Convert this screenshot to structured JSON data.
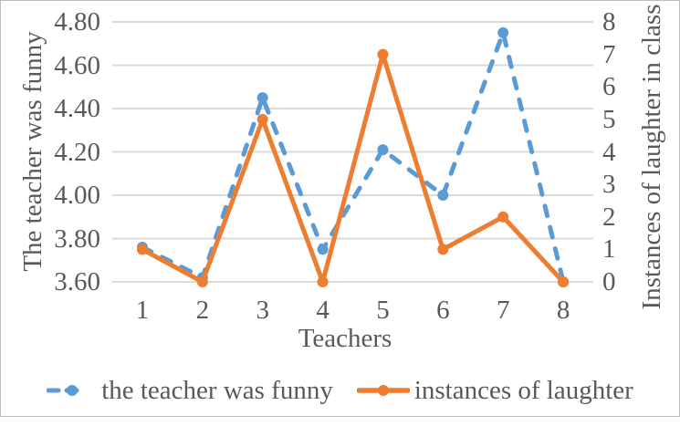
{
  "chart_data": {
    "type": "line",
    "categories": [
      "1",
      "2",
      "3",
      "4",
      "5",
      "6",
      "7",
      "8"
    ],
    "xlabel": "Teachers",
    "series": [
      {
        "name": "the teacher was funny",
        "axis": "left",
        "color": "#5B9BD5",
        "style": "dashed",
        "marker": "circle",
        "values": [
          3.76,
          3.62,
          4.45,
          3.75,
          4.21,
          4.0,
          4.75,
          3.6
        ]
      },
      {
        "name": "instances of laughter",
        "axis": "right",
        "color": "#ED7D31",
        "style": "solid",
        "marker": "circle",
        "values": [
          1,
          0,
          5,
          0,
          7,
          1,
          2,
          0
        ]
      }
    ],
    "left_axis": {
      "label": "The teacher was funny",
      "min": 3.6,
      "max": 4.8,
      "step": 0.2,
      "ticks": [
        "3.60",
        "3.80",
        "4.00",
        "4.20",
        "4.40",
        "4.60",
        "4.80"
      ]
    },
    "right_axis": {
      "label": "Instances of laughter in class",
      "min": 0,
      "max": 8,
      "step": 1,
      "ticks": [
        "0",
        "1",
        "2",
        "3",
        "4",
        "5",
        "6",
        "7",
        "8"
      ]
    },
    "legend": {
      "position": "bottom",
      "entries": [
        "the teacher was funny",
        "instances of laughter"
      ]
    },
    "grid": true
  },
  "colors": {
    "text": "#595959",
    "gridline": "#DADADA",
    "frame_border": "#BDBDBD",
    "background": "#FFFFFF",
    "series_blue": "#5B9BD5",
    "series_orange": "#ED7D31"
  }
}
